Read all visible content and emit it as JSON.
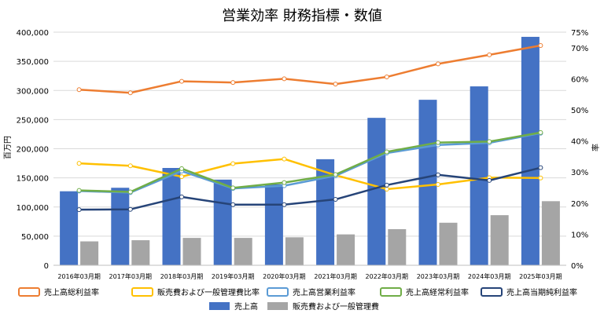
{
  "chart_data": {
    "type": "bar",
    "title": "営業効率 財務指標・数値",
    "xlabel": "",
    "ylabel": "百万円",
    "y2label": "率",
    "categories": [
      "2016年03月期",
      "2017年03月期",
      "2018年03月期",
      "2019年03月期",
      "2020年03月期",
      "2021年03月期",
      "2022年03月期",
      "2023年03月期",
      "2024年03月期",
      "2025年03月期"
    ],
    "ylim": [
      0,
      400000
    ],
    "yticks": [
      0,
      50000,
      100000,
      150000,
      200000,
      250000,
      300000,
      350000,
      400000
    ],
    "y_tick_labels": [
      "0",
      "50,000",
      "100,000",
      "150,000",
      "200,000",
      "250,000",
      "300,000",
      "350,000",
      "400,000"
    ],
    "y2lim": [
      0,
      75
    ],
    "y2ticks": [
      0,
      10,
      20,
      30,
      40,
      50,
      60,
      70,
      75
    ],
    "y2_tick_labels": [
      "0%",
      "10%",
      "20%",
      "30%",
      "40%",
      "50%",
      "60%",
      "70%",
      "75%"
    ],
    "grid": true,
    "legend_position": "bottom",
    "bar_series": [
      {
        "name": "売上高",
        "color": "#4472c4",
        "values": [
          127000,
          133000,
          167000,
          147000,
          139000,
          182000,
          253000,
          284000,
          307000,
          392000
        ]
      },
      {
        "name": "販売費および一般管理費",
        "color": "#a5a5a5",
        "values": [
          41000,
          43000,
          47000,
          47000,
          48000,
          53000,
          62000,
          73000,
          86000,
          110000
        ]
      }
    ],
    "line_series": [
      {
        "name": "売上高総利益率",
        "color": "#ed7d31",
        "values": [
          56.5,
          55.5,
          59.2,
          58.8,
          60.0,
          58.3,
          60.6,
          64.8,
          67.7,
          70.7
        ]
      },
      {
        "name": "販売費および一般管理費比率",
        "color": "#ffc000",
        "values": [
          32.8,
          32.0,
          28.5,
          32.7,
          34.2,
          29.0,
          24.5,
          26.0,
          28.2,
          28.1
        ]
      },
      {
        "name": "売上高営業利益率",
        "color": "#5b9bd5",
        "values": [
          23.9,
          23.4,
          30.3,
          24.7,
          25.6,
          28.8,
          36.1,
          38.7,
          39.4,
          42.5
        ]
      },
      {
        "name": "売上高経常利益率",
        "color": "#70ad47",
        "values": [
          24.1,
          23.6,
          31.1,
          24.9,
          26.6,
          29.2,
          36.5,
          39.5,
          39.8,
          42.7
        ]
      },
      {
        "name": "売上高当期純利益率",
        "color": "#264478",
        "values": [
          17.9,
          18.0,
          22.0,
          19.5,
          19.5,
          21.2,
          25.8,
          29.1,
          27.3,
          31.4
        ]
      }
    ]
  }
}
